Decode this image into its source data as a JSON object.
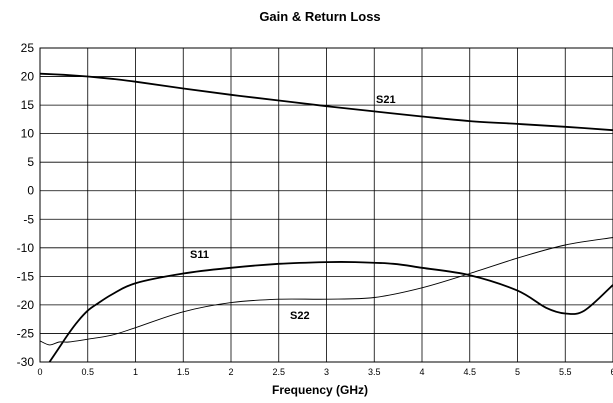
{
  "chart_data": {
    "type": "line",
    "title": "Gain & Return Loss",
    "xlabel": "Frequency (GHz)",
    "ylabel": "",
    "xlim": [
      0,
      6
    ],
    "ylim": [
      -30,
      25
    ],
    "x_ticks": [
      "0",
      "0.5",
      "1",
      "1.5",
      "2",
      "2.5",
      "3",
      "3.5",
      "4",
      "4.5",
      "5",
      "5.5",
      "6"
    ],
    "y_ticks": [
      "25",
      "20",
      "15",
      "10",
      "5",
      "0",
      "-5",
      "-10",
      "-15",
      "-20",
      "-25",
      "-30"
    ],
    "grid": true,
    "series": [
      {
        "name": "S21",
        "color": "#000000",
        "width": 1.8,
        "x": [
          0,
          0.25,
          0.5,
          0.75,
          1,
          1.5,
          2,
          2.5,
          3,
          3.5,
          4,
          4.5,
          5,
          5.5,
          6
        ],
        "y": [
          20.5,
          20.3,
          20.0,
          19.6,
          19.1,
          17.9,
          16.8,
          15.8,
          14.8,
          13.9,
          13.0,
          12.2,
          11.7,
          11.2,
          10.6
        ]
      },
      {
        "name": "S11",
        "color": "#000000",
        "width": 1.8,
        "x": [
          0.1,
          0.2,
          0.3,
          0.4,
          0.5,
          0.6,
          0.75,
          1,
          1.5,
          2,
          2.5,
          3,
          3.3,
          3.7,
          4,
          4.5,
          5,
          5.3,
          5.5,
          5.7,
          6
        ],
        "y": [
          -30,
          -27.5,
          -25,
          -22.8,
          -21,
          -19.8,
          -18.2,
          -16.2,
          -14.5,
          -13.5,
          -12.8,
          -12.5,
          -12.5,
          -12.8,
          -13.5,
          -14.8,
          -17.5,
          -20.5,
          -21.5,
          -21,
          -16.5
        ]
      },
      {
        "name": "S22",
        "color": "#000000",
        "width": 0.9,
        "x": [
          0,
          0.1,
          0.2,
          0.3,
          0.5,
          0.75,
          1,
          1.5,
          2,
          2.5,
          3,
          3.5,
          4,
          4.5,
          5,
          5.5,
          6
        ],
        "y": [
          -26.3,
          -27,
          -26.5,
          -26.5,
          -26,
          -25.3,
          -24,
          -21.2,
          -19.6,
          -19.0,
          -19.0,
          -18.7,
          -17,
          -14.5,
          -11.8,
          -9.5,
          -8.2
        ]
      }
    ],
    "annotations": [
      "S21",
      "S11",
      "S22"
    ]
  }
}
